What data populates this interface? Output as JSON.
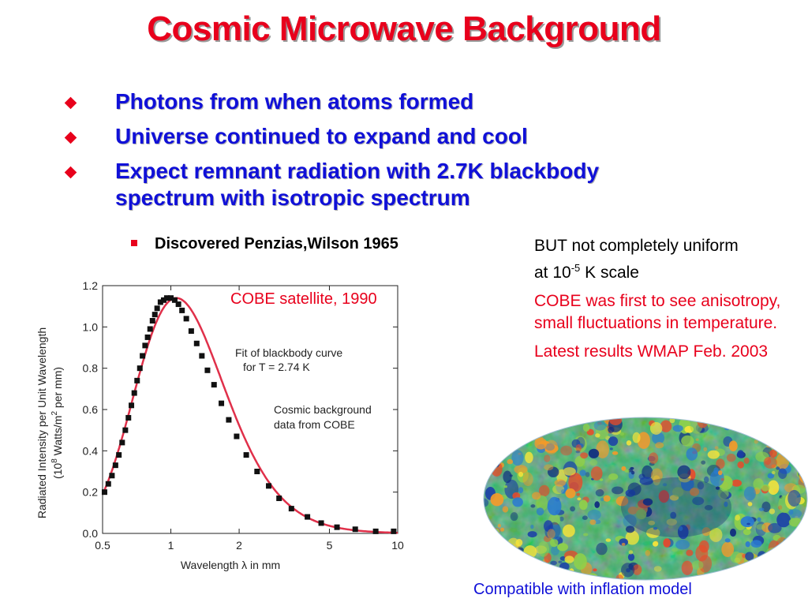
{
  "slide": {
    "title": "Cosmic Microwave Background",
    "bullets": [
      {
        "lines": [
          "Photons from when atoms formed"
        ]
      },
      {
        "lines": [
          "Universe continued to expand and cool"
        ]
      },
      {
        "lines": [
          "Expect remnant radiation with 2.7K blackbody",
          "spectrum with isotropic spectrum"
        ]
      }
    ],
    "sub_bullet": "Discovered Penzias,Wilson 1965",
    "right_text": {
      "line1": "BUT not completely uniform",
      "line2_prefix": "at 10",
      "line2_sup": "-5",
      "line2_suffix": " K scale",
      "cobe_first": "COBE was first to see anisotropy, small fluctuations in temperature.",
      "latest": "Latest results WMAP Feb. 2003"
    },
    "cobe_satellite": "COBE satellite, 1990",
    "footer": "Compatible with  inflation model",
    "colors": {
      "title": "#e8001c",
      "bullet_text": "#1010d8",
      "marker": "#e8001c",
      "curve": "#e0304a"
    }
  },
  "chart_data": {
    "type": "scatter",
    "xlabel": "Wavelength λ in mm",
    "ylabel_line1": "Radiated Intensity per Unit Wavelength",
    "ylabel_line2": "(10",
    "ylabel_sup1": "8",
    "ylabel_mid": " Watts/m",
    "ylabel_sup2": "2",
    "ylabel_end": " per mm)",
    "x_scale": "log",
    "xlim": [
      0.5,
      10
    ],
    "ylim": [
      0.0,
      1.2
    ],
    "x_ticks": [
      0.5,
      1,
      2,
      5,
      10
    ],
    "x_tick_labels": [
      "0.5",
      "1",
      "2",
      "5",
      "10"
    ],
    "y_ticks": [
      0.0,
      0.2,
      0.4,
      0.6,
      0.8,
      1.0,
      1.2
    ],
    "y_tick_labels": [
      "0.0",
      "0.2",
      "0.4",
      "0.6",
      "0.8",
      "1.0",
      "1.2"
    ],
    "annotation_fit_line1": "Fit of blackbody curve",
    "annotation_fit_line2": "for T = 2.74 K",
    "annotation_data_line1": "Cosmic background",
    "annotation_data_line2": "data from COBE",
    "temperature_K": 2.74,
    "series": [
      {
        "name": "Cosmic background data from COBE",
        "x": [
          0.51,
          0.53,
          0.55,
          0.57,
          0.59,
          0.61,
          0.63,
          0.65,
          0.67,
          0.69,
          0.71,
          0.73,
          0.75,
          0.77,
          0.79,
          0.81,
          0.83,
          0.85,
          0.87,
          0.9,
          0.93,
          0.96,
          1.0,
          1.04,
          1.08,
          1.12,
          1.17,
          1.23,
          1.3,
          1.37,
          1.45,
          1.55,
          1.67,
          1.8,
          1.95,
          2.15,
          2.4,
          2.7,
          3.0,
          3.4,
          4.0,
          4.6,
          5.4,
          6.5,
          8.0,
          9.6
        ],
        "y": [
          0.2,
          0.24,
          0.28,
          0.33,
          0.38,
          0.44,
          0.5,
          0.56,
          0.62,
          0.68,
          0.74,
          0.8,
          0.86,
          0.91,
          0.95,
          0.99,
          1.03,
          1.06,
          1.09,
          1.12,
          1.13,
          1.14,
          1.14,
          1.13,
          1.11,
          1.08,
          1.04,
          0.98,
          0.92,
          0.86,
          0.79,
          0.72,
          0.63,
          0.55,
          0.47,
          0.38,
          0.3,
          0.23,
          0.17,
          0.12,
          0.08,
          0.05,
          0.03,
          0.02,
          0.01,
          0.01
        ]
      }
    ]
  }
}
